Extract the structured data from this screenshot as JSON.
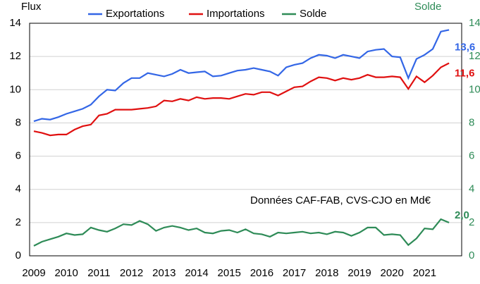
{
  "chart_data": {
    "type": "line",
    "y_label": "Flux",
    "y2_label": "Solde",
    "annotation": "Données CAF-FAB, CVS-CJO en Md€",
    "categories": [
      "2009",
      null,
      null,
      null,
      "2010",
      null,
      null,
      null,
      "2011",
      null,
      null,
      null,
      "2012",
      null,
      null,
      null,
      "2013",
      null,
      null,
      null,
      "2014",
      null,
      null,
      null,
      "2015",
      null,
      null,
      null,
      "2016",
      null,
      null,
      null,
      "2017",
      null,
      null,
      null,
      "2018",
      null,
      null,
      null,
      "2019",
      null,
      null,
      null,
      "2020",
      null,
      null,
      null,
      "2021",
      null,
      null,
      null
    ],
    "series": [
      {
        "name": "Exportations",
        "color": "#3366e6",
        "axis": "y",
        "values": [
          8.1,
          8.25,
          8.2,
          8.35,
          8.55,
          8.7,
          8.85,
          9.1,
          9.6,
          10.0,
          9.95,
          10.4,
          10.7,
          10.7,
          11.0,
          10.9,
          10.8,
          10.95,
          11.2,
          11.0,
          11.05,
          11.1,
          10.8,
          10.85,
          11.0,
          11.15,
          11.2,
          11.3,
          11.2,
          11.1,
          10.85,
          11.35,
          11.5,
          11.6,
          11.9,
          12.1,
          12.05,
          11.9,
          12.1,
          12.0,
          11.9,
          12.3,
          12.4,
          12.45,
          12.0,
          11.95,
          10.7,
          11.85,
          12.1,
          12.45,
          13.5,
          13.6
        ],
        "value_labels": [
          null,
          null,
          null,
          null,
          null,
          null,
          null,
          null,
          null,
          null,
          null,
          null,
          null,
          null,
          null,
          null,
          null,
          null,
          null,
          null,
          null,
          null,
          null,
          null,
          null,
          null,
          null,
          null,
          null,
          null,
          null,
          null,
          null,
          null,
          null,
          null,
          null,
          null,
          null,
          null,
          null,
          null,
          null,
          null,
          null,
          null,
          null,
          null,
          null,
          null,
          null,
          "13,6"
        ]
      },
      {
        "name": "Importations",
        "color": "#e01010",
        "axis": "y",
        "values": [
          7.5,
          7.4,
          7.25,
          7.3,
          7.3,
          7.6,
          7.8,
          7.9,
          8.45,
          8.55,
          8.8,
          8.8,
          8.8,
          8.85,
          8.9,
          9.0,
          9.35,
          9.3,
          9.45,
          9.35,
          9.55,
          9.45,
          9.5,
          9.5,
          9.45,
          9.6,
          9.75,
          9.7,
          9.85,
          9.85,
          9.65,
          9.9,
          10.15,
          10.2,
          10.5,
          10.75,
          10.7,
          10.55,
          10.7,
          10.6,
          10.7,
          10.9,
          10.75,
          10.75,
          10.8,
          10.75,
          10.05,
          10.8,
          10.45,
          10.85,
          11.35,
          11.6
        ],
        "value_labels": [
          null,
          null,
          null,
          null,
          null,
          null,
          null,
          null,
          null,
          null,
          null,
          null,
          null,
          null,
          null,
          null,
          null,
          null,
          null,
          null,
          null,
          null,
          null,
          null,
          null,
          null,
          null,
          null,
          null,
          null,
          null,
          null,
          null,
          null,
          null,
          null,
          null,
          null,
          null,
          null,
          null,
          null,
          null,
          null,
          null,
          null,
          null,
          null,
          null,
          null,
          null,
          "11,6"
        ]
      },
      {
        "name": "Solde",
        "color": "#2e8b57",
        "axis": "y2",
        "values": [
          0.6,
          0.85,
          1.0,
          1.15,
          1.35,
          1.25,
          1.3,
          1.7,
          1.55,
          1.45,
          1.65,
          1.9,
          1.85,
          2.1,
          1.9,
          1.5,
          1.7,
          1.8,
          1.7,
          1.55,
          1.65,
          1.4,
          1.35,
          1.5,
          1.55,
          1.4,
          1.6,
          1.35,
          1.3,
          1.15,
          1.4,
          1.35,
          1.4,
          1.45,
          1.35,
          1.4,
          1.3,
          1.45,
          1.4,
          1.2,
          1.4,
          1.7,
          1.7,
          1.25,
          1.3,
          1.25,
          0.65,
          1.05,
          1.65,
          1.6,
          2.2,
          2.0
        ],
        "value_labels": [
          null,
          null,
          null,
          null,
          null,
          null,
          null,
          null,
          null,
          null,
          null,
          null,
          null,
          null,
          null,
          null,
          null,
          null,
          null,
          null,
          null,
          null,
          null,
          null,
          null,
          null,
          null,
          null,
          null,
          null,
          null,
          null,
          null,
          null,
          null,
          null,
          null,
          null,
          null,
          null,
          null,
          null,
          null,
          null,
          null,
          null,
          null,
          null,
          null,
          null,
          null,
          "2,0"
        ]
      }
    ],
    "ylim": [
      0,
      14
    ],
    "yticks": [
      0,
      2,
      4,
      6,
      8,
      10,
      12,
      14
    ],
    "y2lim": [
      0,
      14
    ],
    "y2ticks": [
      0,
      2,
      4,
      6,
      8,
      10,
      12,
      14
    ],
    "y2_color": "#2e8b57",
    "grid": true
  }
}
